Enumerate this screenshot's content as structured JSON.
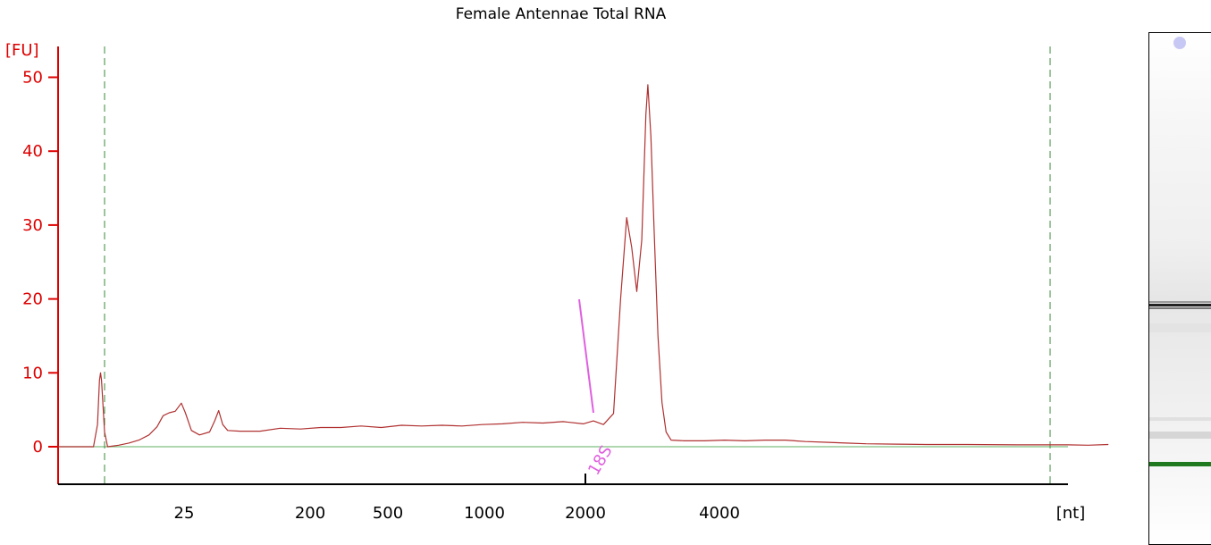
{
  "chart_data": {
    "type": "line",
    "title": "Female Antennae  Total RNA",
    "ylabel": "[FU]",
    "xlabel": "[nt]",
    "ylim": [
      -5,
      53
    ],
    "yticks": [
      0,
      10,
      20,
      30,
      40,
      50
    ],
    "xtick_labels": [
      "25",
      "200",
      "500",
      "1000",
      "2000",
      "4000"
    ],
    "grid": false,
    "colors": {
      "trace": "#b03030",
      "axis_y": "#dd0000",
      "axis_x": "#000000",
      "baseline": "#7fbf7f",
      "marker_lines": "#3a8a3a",
      "peak_label": "#e060e0",
      "gel_band": "#1f7a1f"
    },
    "annotations": [
      {
        "text": "18S"
      }
    ],
    "series": [
      {
        "values": [
          [
            0,
            0
          ],
          [
            2,
            0
          ],
          [
            3.5,
            0
          ],
          [
            3.9,
            3
          ],
          [
            4.1,
            9
          ],
          [
            4.2,
            10
          ],
          [
            4.3,
            9
          ],
          [
            4.6,
            2
          ],
          [
            4.9,
            0
          ],
          [
            6,
            0.2
          ],
          [
            7,
            0.5
          ],
          [
            8,
            0.9
          ],
          [
            9,
            1.6
          ],
          [
            9.8,
            2.7
          ],
          [
            10.4,
            4.2
          ],
          [
            11,
            4.6
          ],
          [
            11.6,
            4.8
          ],
          [
            12.2,
            5.9
          ],
          [
            12.6,
            4.6
          ],
          [
            13.2,
            2.2
          ],
          [
            14,
            1.6
          ],
          [
            15,
            2.0
          ],
          [
            15.5,
            3.5
          ],
          [
            15.9,
            4.9
          ],
          [
            16.3,
            3.0
          ],
          [
            16.8,
            2.2
          ],
          [
            18,
            2.1
          ],
          [
            20,
            2.1
          ],
          [
            22,
            2.5
          ],
          [
            24,
            2.4
          ],
          [
            26,
            2.6
          ],
          [
            28,
            2.6
          ],
          [
            30,
            2.8
          ],
          [
            32,
            2.6
          ],
          [
            34,
            2.9
          ],
          [
            36,
            2.8
          ],
          [
            38,
            2.9
          ],
          [
            40,
            2.8
          ],
          [
            42,
            3.0
          ],
          [
            44,
            3.1
          ],
          [
            46,
            3.3
          ],
          [
            48,
            3.2
          ],
          [
            50,
            3.4
          ],
          [
            52,
            3.1
          ],
          [
            53,
            3.5
          ],
          [
            54,
            3.0
          ],
          [
            55,
            4.5
          ],
          [
            55.7,
            20
          ],
          [
            56.3,
            31
          ],
          [
            56.8,
            27
          ],
          [
            57.3,
            21
          ],
          [
            57.8,
            28
          ],
          [
            58.2,
            45
          ],
          [
            58.4,
            49
          ],
          [
            58.7,
            42
          ],
          [
            59,
            30
          ],
          [
            59.4,
            15
          ],
          [
            59.8,
            6
          ],
          [
            60.2,
            2
          ],
          [
            60.7,
            0.9
          ],
          [
            62,
            0.8
          ],
          [
            64,
            0.8
          ],
          [
            66,
            0.9
          ],
          [
            68,
            0.8
          ],
          [
            70,
            0.9
          ],
          [
            72,
            0.9
          ],
          [
            74,
            0.7
          ],
          [
            76,
            0.6
          ],
          [
            78,
            0.5
          ],
          [
            80,
            0.4
          ],
          [
            83,
            0.35
          ],
          [
            86,
            0.3
          ],
          [
            90,
            0.3
          ],
          [
            95,
            0.25
          ],
          [
            100,
            0.25
          ],
          [
            102,
            0.2
          ],
          [
            104,
            0.3
          ]
        ]
      }
    ]
  }
}
